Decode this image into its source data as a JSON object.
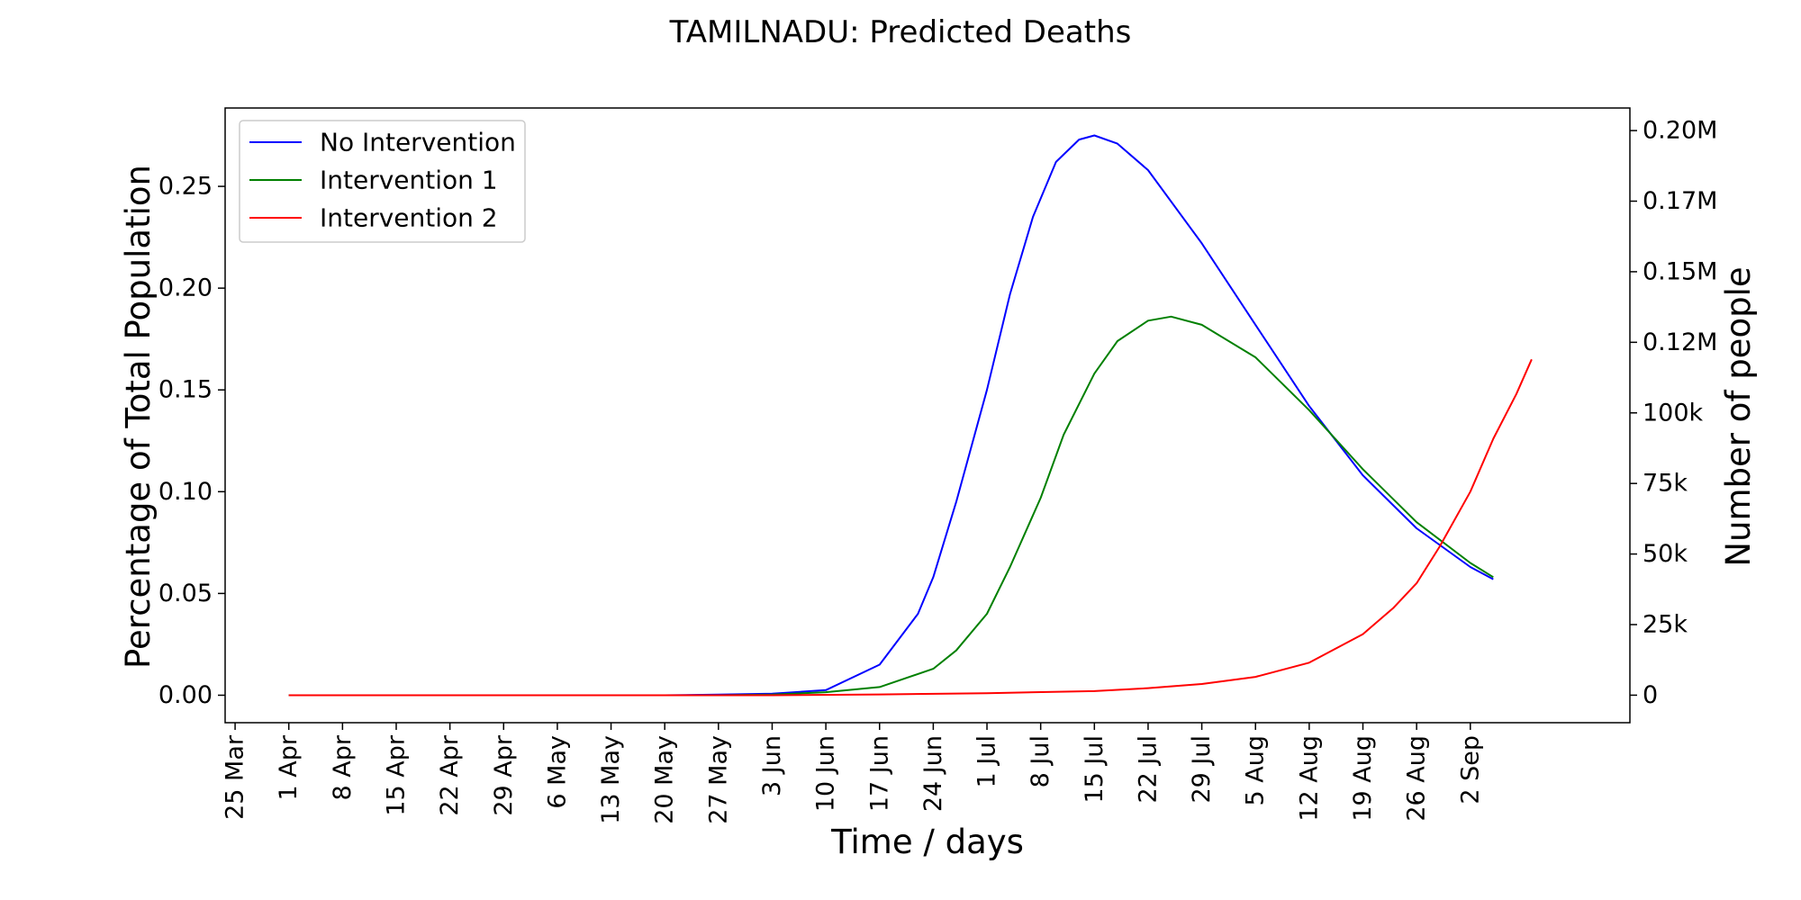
{
  "chart_data": {
    "type": "line",
    "title": "TAMILNADU: Predicted Deaths",
    "xlabel": "Time / days",
    "ylabel": "Percentage of Total Population",
    "ylabel_right": "Number of people",
    "x_ticks": [
      "25 Mar",
      "1 Apr",
      "8 Apr",
      "15 Apr",
      "22 Apr",
      "29 Apr",
      "6 May",
      "13 May",
      "20 May",
      "27 May",
      "3 Jun",
      "10 Jun",
      "17 Jun",
      "24 Jun",
      "1 Jul",
      "8 Jul",
      "15 Jul",
      "22 Jul",
      "29 Jul",
      "5 Aug",
      "12 Aug",
      "19 Aug",
      "26 Aug",
      "2 Sep"
    ],
    "y_ticks": [
      "0.00",
      "0.05",
      "0.10",
      "0.15",
      "0.20",
      "0.25"
    ],
    "y_ticks_right": [
      "0",
      "25k",
      "50k",
      "75k",
      "100k",
      "0.12M",
      "0.15M",
      "0.17M",
      "0.20M"
    ],
    "ylim": [
      -0.0135,
      0.2885
    ],
    "ylim_right": [
      -9750,
      208000
    ],
    "legend_position": "upper-left",
    "grid": false,
    "series": [
      {
        "name": "No Intervention",
        "color": "#0000ff",
        "points": [
          [
            7,
            0
          ],
          [
            56,
            0
          ],
          [
            63,
            0.0003
          ],
          [
            70,
            0.0008
          ],
          [
            77,
            0.0025
          ],
          [
            84,
            0.015
          ],
          [
            89,
            0.04
          ],
          [
            91,
            0.058
          ],
          [
            94,
            0.095
          ],
          [
            98,
            0.15
          ],
          [
            101,
            0.197
          ],
          [
            104,
            0.235
          ],
          [
            107,
            0.262
          ],
          [
            110,
            0.273
          ],
          [
            112,
            0.275
          ],
          [
            115,
            0.271
          ],
          [
            119,
            0.258
          ],
          [
            126,
            0.222
          ],
          [
            133,
            0.182
          ],
          [
            140,
            0.142
          ],
          [
            147,
            0.108
          ],
          [
            154,
            0.082
          ],
          [
            161,
            0.063
          ],
          [
            164,
            0.057
          ]
        ]
      },
      {
        "name": "Intervention 1",
        "color": "#008000",
        "points": [
          [
            7,
            0
          ],
          [
            63,
            0
          ],
          [
            70,
            0.0003
          ],
          [
            77,
            0.0015
          ],
          [
            84,
            0.004
          ],
          [
            91,
            0.013
          ],
          [
            94,
            0.022
          ],
          [
            98,
            0.04
          ],
          [
            101,
            0.063
          ],
          [
            105,
            0.097
          ],
          [
            108,
            0.128
          ],
          [
            112,
            0.158
          ],
          [
            115,
            0.174
          ],
          [
            119,
            0.184
          ],
          [
            122,
            0.186
          ],
          [
            126,
            0.182
          ],
          [
            133,
            0.166
          ],
          [
            140,
            0.14
          ],
          [
            147,
            0.111
          ],
          [
            154,
            0.085
          ],
          [
            161,
            0.065
          ],
          [
            164,
            0.058
          ]
        ]
      },
      {
        "name": "Intervention 2",
        "color": "#ff0000",
        "points": [
          [
            7,
            0
          ],
          [
            70,
            0
          ],
          [
            84,
            0.0004
          ],
          [
            98,
            0.001
          ],
          [
            112,
            0.002
          ],
          [
            119,
            0.0035
          ],
          [
            126,
            0.0055
          ],
          [
            133,
            0.009
          ],
          [
            140,
            0.016
          ],
          [
            147,
            0.03
          ],
          [
            151,
            0.043
          ],
          [
            154,
            0.055
          ],
          [
            157,
            0.073
          ],
          [
            161,
            0.1
          ],
          [
            164,
            0.126
          ],
          [
            167,
            0.148
          ],
          [
            169,
            0.165
          ]
        ]
      }
    ]
  }
}
